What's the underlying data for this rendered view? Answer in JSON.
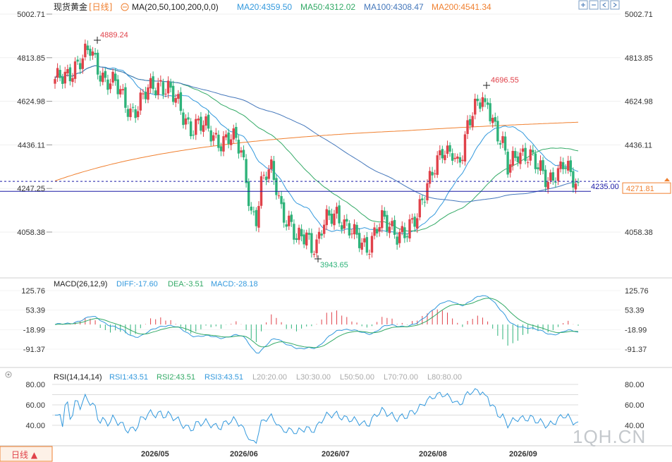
{
  "header": {
    "title": "现货黄金",
    "period": "[日线]",
    "ma_label": "MA(20,50,100,200,0,0)",
    "ma_values": [
      {
        "name": "MA20",
        "text": "MA20:4359.50",
        "color": "#3399dd"
      },
      {
        "name": "MA50",
        "text": "MA50:4312.02",
        "color": "#33aa66"
      },
      {
        "name": "MA100",
        "text": "MA100:4308.47",
        "color": "#4477bb"
      },
      {
        "name": "MA200",
        "text": "MA200:4541.34",
        "color": "#f08030"
      }
    ]
  },
  "price_axis": {
    "ticks": [
      5002.71,
      4813.85,
      4624.98,
      4436.11,
      4247.25,
      4058.38
    ],
    "labels": [
      "5002.71",
      "4813.85",
      "4624.98",
      "4436.11",
      "4247.25",
      "4058.38"
    ],
    "ylim": [
      3940,
      5002.71
    ]
  },
  "annotations": {
    "high1": "4889.24",
    "high2": "4696.55",
    "low": "3943.65",
    "hline_price": 4235.0,
    "hline_label": "4235.00",
    "last_price": "4271.81",
    "last_price_value": 4271.81
  },
  "macd": {
    "title": "MACD(26,12,9)",
    "diff": "DIFF:-17.60",
    "dea": "DEA:-3.51",
    "macd": "MACD:-28.18",
    "ticks": [
      125.76,
      53.39,
      -18.99,
      -91.37
    ],
    "labels": [
      "125.76",
      "53.39",
      "-18.99",
      "-91.37"
    ]
  },
  "rsi": {
    "title": "RSI(14,14,14)",
    "rsi1": "RSI1:43.51",
    "rsi2": "RSI2:43.51",
    "rsi3": "RSI3:43.51",
    "levels": [
      "L20:20.00",
      "L30:30.00",
      "L50:50.00",
      "L70:70.00",
      "L80:80.00"
    ],
    "ticks": [
      80,
      60,
      40
    ],
    "labels": [
      "80.00",
      "60.00",
      "40.00"
    ]
  },
  "x_axis": {
    "labels": [
      "2026/05",
      "2026/06",
      "2026/07",
      "2026/08",
      "2026/09"
    ]
  },
  "footer": {
    "period_button": "日线 ▲",
    "watermark": "1QH.CN"
  },
  "colors": {
    "up": "#e0424a",
    "down": "#2eb37a",
    "ma20": "#3399dd",
    "ma50": "#33aa66",
    "ma100": "#4477bb",
    "ma200": "#f08030",
    "hline": "#1a1aa6"
  },
  "chart_data": {
    "type": "candlestick",
    "anchors": [
      [
        0,
        4700
      ],
      [
        4,
        4740
      ],
      [
        8,
        4780
      ],
      [
        11,
        4800
      ],
      [
        14,
        4845
      ],
      [
        17,
        4780
      ],
      [
        20,
        4720
      ],
      [
        24,
        4690
      ],
      [
        27,
        4640
      ],
      [
        30,
        4590
      ],
      [
        33,
        4600
      ],
      [
        36,
        4650
      ],
      [
        39,
        4690
      ],
      [
        42,
        4710
      ],
      [
        45,
        4680
      ],
      [
        48,
        4620
      ],
      [
        51,
        4560
      ],
      [
        54,
        4520
      ],
      [
        57,
        4530
      ],
      [
        60,
        4500
      ],
      [
        63,
        4470
      ],
      [
        66,
        4460
      ],
      [
        69,
        4470
      ],
      [
        72,
        4440
      ],
      [
        74,
        4400
      ],
      [
        76,
        4300
      ],
      [
        78,
        4150
      ],
      [
        80,
        4120
      ],
      [
        82,
        4250
      ],
      [
        84,
        4300
      ],
      [
        86,
        4330
      ],
      [
        88,
        4270
      ],
      [
        90,
        4170
      ],
      [
        92,
        4110
      ],
      [
        94,
        4070
      ],
      [
        96,
        4010
      ],
      [
        98,
        4040
      ],
      [
        100,
        4060
      ],
      [
        102,
        4010
      ],
      [
        104,
        4000
      ],
      [
        106,
        4060
      ],
      [
        108,
        4100
      ],
      [
        110,
        4130
      ],
      [
        112,
        4150
      ],
      [
        114,
        4120
      ],
      [
        116,
        4080
      ],
      [
        118,
        4050
      ],
      [
        120,
        4020
      ],
      [
        122,
        4010
      ],
      [
        124,
        4000
      ],
      [
        126,
        4040
      ],
      [
        128,
        4080
      ],
      [
        130,
        4100
      ],
      [
        132,
        4080
      ],
      [
        134,
        4070
      ],
      [
        136,
        4060
      ],
      [
        138,
        4070
      ],
      [
        140,
        4060
      ],
      [
        142,
        4080
      ],
      [
        144,
        4110
      ],
      [
        146,
        4200
      ],
      [
        148,
        4280
      ],
      [
        150,
        4340
      ],
      [
        152,
        4360
      ],
      [
        154,
        4390
      ],
      [
        156,
        4380
      ],
      [
        158,
        4410
      ],
      [
        160,
        4370
      ],
      [
        162,
        4420
      ],
      [
        164,
        4510
      ],
      [
        166,
        4560
      ],
      [
        168,
        4600
      ],
      [
        170,
        4650
      ],
      [
        171,
        4600
      ],
      [
        172,
        4640
      ],
      [
        174,
        4550
      ],
      [
        176,
        4470
      ],
      [
        178,
        4420
      ],
      [
        180,
        4330
      ],
      [
        182,
        4380
      ],
      [
        184,
        4420
      ],
      [
        186,
        4400
      ],
      [
        188,
        4380
      ],
      [
        190,
        4360
      ],
      [
        192,
        4330
      ],
      [
        194,
        4330
      ],
      [
        196,
        4290
      ],
      [
        198,
        4310
      ],
      [
        200,
        4300
      ],
      [
        202,
        4340
      ],
      [
        204,
        4320
      ],
      [
        206,
        4300
      ],
      [
        208,
        4271.81
      ]
    ],
    "indicators": [
      "MA20",
      "MA50",
      "MA100",
      "MA200",
      "MACD(26,12,9)",
      "RSI(14,14,14)"
    ]
  }
}
